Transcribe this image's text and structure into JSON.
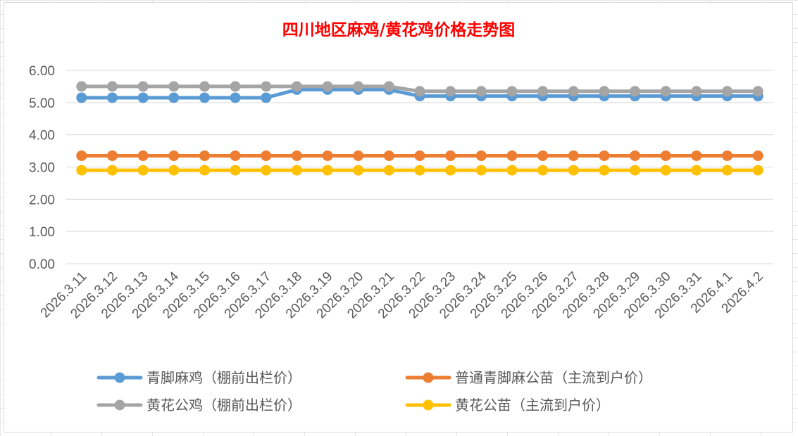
{
  "chart_data": {
    "type": "line",
    "title": "四川地区麻鸡/黄花鸡价格走势图",
    "xlabel": "",
    "ylabel": "",
    "ylim": [
      0,
      6
    ],
    "yticks": [
      "0.00",
      "1.00",
      "2.00",
      "3.00",
      "4.00",
      "5.00",
      "6.00"
    ],
    "grid": true,
    "legend_position": "bottom",
    "categories": [
      "2026.3.11",
      "2026.3.12",
      "2026.3.13",
      "2026.3.14",
      "2026.3.15",
      "2026.3.16",
      "2026.3.17",
      "2026.3.18",
      "2026.3.19",
      "2026.3.20",
      "2026.3.21",
      "2026.3.22",
      "2026.3.23",
      "2026.3.24",
      "2026.3.25",
      "2026.3.26",
      "2026.3.27",
      "2026.3.28",
      "2026.3.29",
      "2026.3.30",
      "2026.3.31",
      "2026.4.1",
      "2026.4.2"
    ],
    "series": [
      {
        "name": "青脚麻鸡（棚前出栏价）",
        "color": "#5b9bd5",
        "values": [
          5.15,
          5.15,
          5.15,
          5.15,
          5.15,
          5.15,
          5.15,
          5.4,
          5.4,
          5.4,
          5.4,
          5.2,
          5.2,
          5.2,
          5.2,
          5.2,
          5.2,
          5.2,
          5.2,
          5.2,
          5.2,
          5.2,
          5.2
        ]
      },
      {
        "name": "普通青脚麻公苗（主流到户价）",
        "color": "#ed7d31",
        "values": [
          3.35,
          3.35,
          3.35,
          3.35,
          3.35,
          3.35,
          3.35,
          3.35,
          3.35,
          3.35,
          3.35,
          3.35,
          3.35,
          3.35,
          3.35,
          3.35,
          3.35,
          3.35,
          3.35,
          3.35,
          3.35,
          3.35,
          3.35
        ]
      },
      {
        "name": "黄花公鸡（棚前出栏价）",
        "color": "#a5a5a5",
        "values": [
          5.5,
          5.5,
          5.5,
          5.5,
          5.5,
          5.5,
          5.5,
          5.5,
          5.5,
          5.5,
          5.5,
          5.35,
          5.35,
          5.35,
          5.35,
          5.35,
          5.35,
          5.35,
          5.35,
          5.35,
          5.35,
          5.35,
          5.35
        ]
      },
      {
        "name": "黄花公苗（主流到户价）",
        "color": "#ffc000",
        "values": [
          2.9,
          2.9,
          2.9,
          2.9,
          2.9,
          2.9,
          2.9,
          2.9,
          2.9,
          2.9,
          2.9,
          2.9,
          2.9,
          2.9,
          2.9,
          2.9,
          2.9,
          2.9,
          2.9,
          2.9,
          2.9,
          2.9,
          2.9
        ]
      }
    ]
  },
  "colors": {
    "title": "#ff0000",
    "gridline": "#d9d9d9",
    "axis_text": "#595959"
  }
}
